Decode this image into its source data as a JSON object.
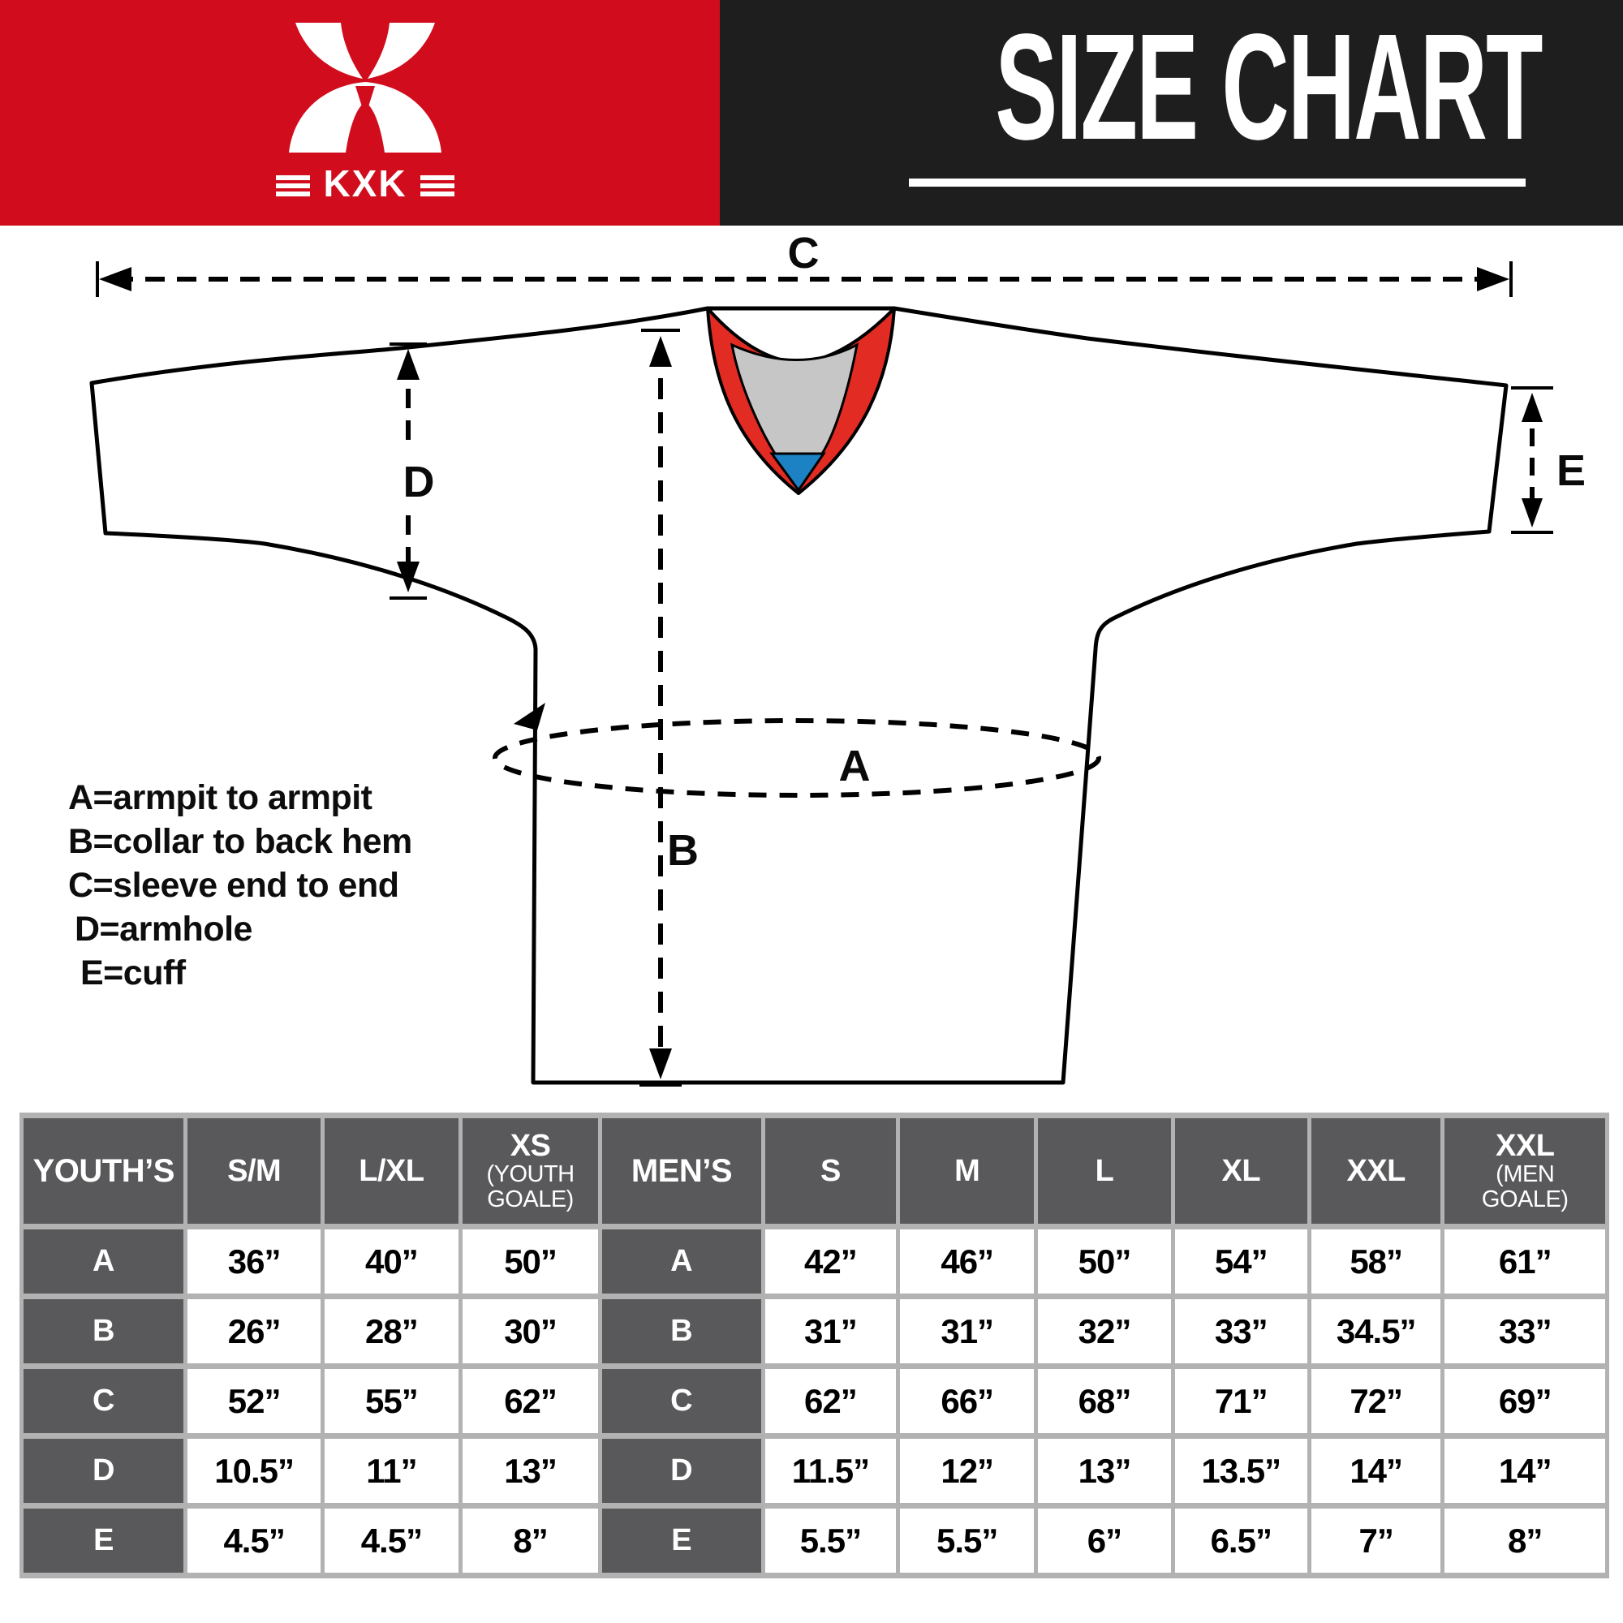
{
  "header": {
    "brand": "KXK",
    "title": "SIZE CHART",
    "colors": {
      "brand_red": "#d10d1d",
      "panel_dark": "#1e1e1e"
    }
  },
  "diagram": {
    "measure_labels": {
      "A": "A",
      "B": "B",
      "C": "C",
      "D": "D",
      "E": "E"
    },
    "legend": [
      "A=armpit to armpit",
      "B=collar to back hem",
      "C=sleeve end to end",
      "D=armhole",
      "E=cuff"
    ],
    "colors": {
      "collar_red": "#e22b22",
      "collar_gray": "#c6c6c7",
      "collar_blue": "#1d82c4",
      "outline": "#000000"
    }
  },
  "size_table": {
    "columns": [
      {
        "label": "YOUTH’S",
        "group": true
      },
      {
        "label": "S/M"
      },
      {
        "label": "L/XL"
      },
      {
        "label": "XS",
        "sub": [
          "(YOUTH",
          "GOALE)"
        ]
      },
      {
        "label": "MEN’S",
        "group": true
      },
      {
        "label": "S"
      },
      {
        "label": "M"
      },
      {
        "label": "L"
      },
      {
        "label": "XL"
      },
      {
        "label": "XXL"
      },
      {
        "label": "XXL",
        "sub": [
          "(MEN",
          "GOALE)"
        ]
      }
    ],
    "rows": [
      {
        "label": "A",
        "youth": [
          "36”",
          "40”",
          "50”"
        ],
        "mens": [
          "42”",
          "46”",
          "50”",
          "54”",
          "58”",
          "61”"
        ]
      },
      {
        "label": "B",
        "youth": [
          "26”",
          "28”",
          "30”"
        ],
        "mens": [
          "31”",
          "31”",
          "32”",
          "33”",
          "34.5”",
          "33”"
        ]
      },
      {
        "label": "C",
        "youth": [
          "52”",
          "55”",
          "62”"
        ],
        "mens": [
          "62”",
          "66”",
          "68”",
          "71”",
          "72”",
          "69”"
        ]
      },
      {
        "label": "D",
        "youth": [
          "10.5”",
          "11”",
          "13”"
        ],
        "mens": [
          "11.5”",
          "12”",
          "13”",
          "13.5”",
          "14”",
          "14”"
        ]
      },
      {
        "label": "E",
        "youth": [
          "4.5”",
          "4.5”",
          "8”"
        ],
        "mens": [
          "5.5”",
          "5.5”",
          "6”",
          "6.5”",
          "7”",
          "8”"
        ]
      }
    ]
  }
}
